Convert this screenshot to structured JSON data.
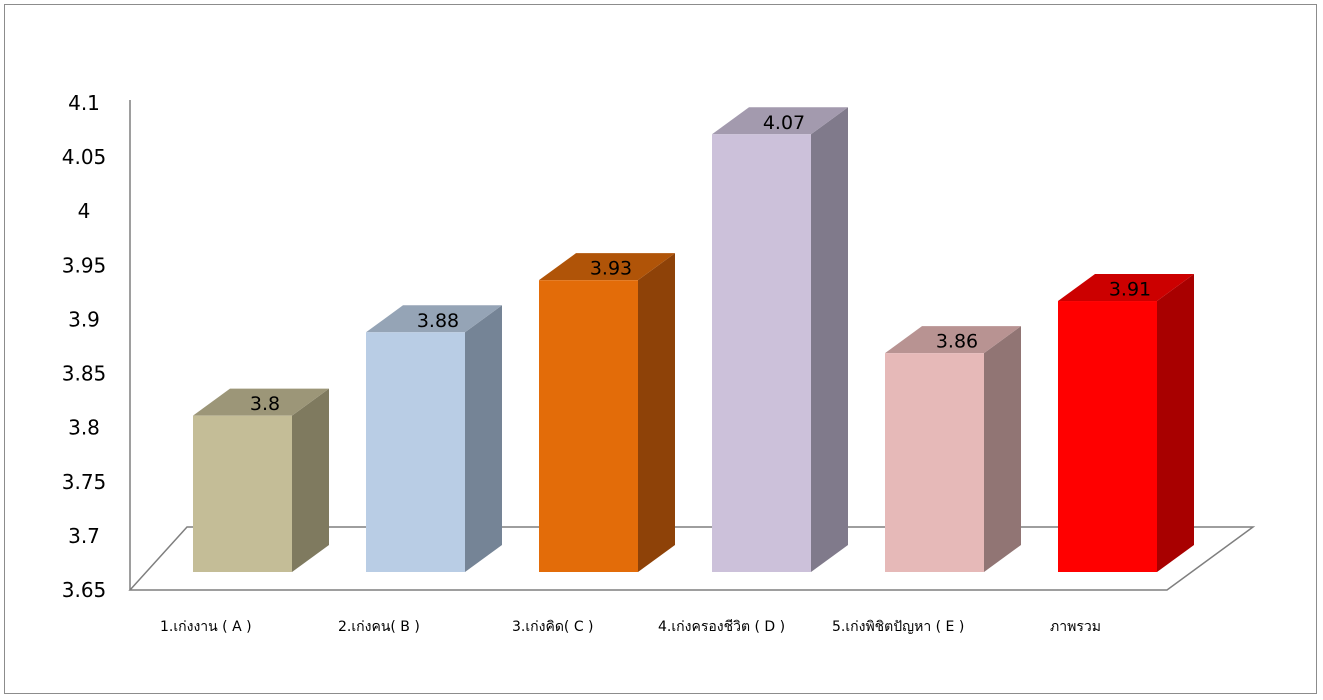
{
  "chart_data": {
    "type": "bar",
    "style": "3d-column",
    "categories": [
      "1.เก่งงาน ( A )",
      "2.เก่งคน( B )",
      "3.เก่งคิด( C )",
      "4.เก่งครองชีวิต ( D )",
      "5.เก่งพิชิตปัญหา ( E )",
      "ภาพรวม"
    ],
    "values": [
      3.8,
      3.88,
      3.93,
      4.07,
      3.86,
      3.91
    ],
    "value_labels": [
      "3.8",
      "3.88",
      "3.93",
      "4.07",
      "3.86",
      "3.91"
    ],
    "ylim": [
      3.65,
      4.1
    ],
    "yticks": [
      "4.1",
      "4.05",
      "4",
      "3.95",
      "3.9",
      "3.85",
      "3.8",
      "3.75",
      "3.7",
      "3.65"
    ],
    "title": "",
    "xlabel": "",
    "ylabel": "",
    "grid": false,
    "legend": "none",
    "colors": [
      {
        "front": "#c4bd97",
        "side": "#7f7a5f",
        "top": "#9c9678"
      },
      {
        "front": "#b9cde5",
        "side": "#758496",
        "top": "#95a4b6"
      },
      {
        "front": "#e36c09",
        "side": "#8e4208",
        "top": "#b05408"
      },
      {
        "front": "#ccc1da",
        "side": "#807a8b",
        "top": "#a39aae"
      },
      {
        "front": "#e6b9b8",
        "side": "#917574",
        "top": "#b89392"
      },
      {
        "front": "#ff0000",
        "side": "#a80000",
        "top": "#cc0000"
      }
    ]
  }
}
